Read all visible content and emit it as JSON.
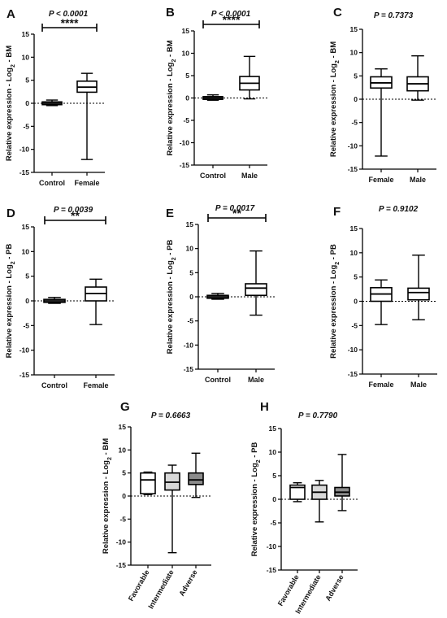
{
  "chart_data": [
    {
      "type": "boxplot",
      "panel_letter": "A",
      "p_value": "P < 0.0001",
      "ylabel": "Relative expression - Log2 - BM",
      "ylim": [
        -15,
        15
      ],
      "yticks": [
        15,
        10,
        5,
        0,
        -5,
        -10,
        -15
      ],
      "reference_line": 0,
      "significance": "****",
      "categories": [
        "Control",
        "Female"
      ],
      "fills": [
        "#ffffff",
        "#ffffff"
      ],
      "boxes": [
        {
          "min": -0.5,
          "q1": -0.3,
          "median": 0,
          "q3": 0.3,
          "max": 0.7
        },
        {
          "min": -12.2,
          "q1": 2.4,
          "median": 3.5,
          "q3": 4.8,
          "max": 6.5
        }
      ]
    },
    {
      "type": "boxplot",
      "panel_letter": "B",
      "p_value": "P < 0.0001",
      "ylabel": "Relative expression - Log2 - BM",
      "ylim": [
        -15,
        15
      ],
      "yticks": [
        15,
        10,
        5,
        0,
        -5,
        -10,
        -15
      ],
      "reference_line": 0,
      "significance": "****",
      "categories": [
        "Control",
        "Male"
      ],
      "fills": [
        "#ffffff",
        "#ffffff"
      ],
      "boxes": [
        {
          "min": -0.5,
          "q1": -0.3,
          "median": 0,
          "q3": 0.3,
          "max": 0.7
        },
        {
          "min": -0.2,
          "q1": 1.8,
          "median": 3.3,
          "q3": 4.8,
          "max": 9.3
        }
      ]
    },
    {
      "type": "boxplot",
      "panel_letter": "C",
      "p_value": "P = 0.7373",
      "ylabel": "Relative expression - Log2 - BM",
      "ylim": [
        -15,
        15
      ],
      "yticks": [
        15,
        10,
        5,
        0,
        -5,
        -10,
        -15
      ],
      "reference_line": 0,
      "significance": "",
      "categories": [
        "Female",
        "Male"
      ],
      "fills": [
        "#ffffff",
        "#ffffff"
      ],
      "boxes": [
        {
          "min": -12.2,
          "q1": 2.4,
          "median": 3.5,
          "q3": 4.8,
          "max": 6.5
        },
        {
          "min": -0.2,
          "q1": 1.8,
          "median": 3.3,
          "q3": 4.8,
          "max": 9.3
        }
      ]
    },
    {
      "type": "boxplot",
      "panel_letter": "D",
      "p_value": "P = 0.0039",
      "ylabel": "Relative expression - Log2 - PB",
      "ylim": [
        -15,
        15
      ],
      "yticks": [
        15,
        10,
        5,
        0,
        -5,
        -10,
        -15
      ],
      "reference_line": 0,
      "significance": "**",
      "categories": [
        "Control",
        "Female"
      ],
      "fills": [
        "#ffffff",
        "#ffffff"
      ],
      "boxes": [
        {
          "min": -0.5,
          "q1": -0.3,
          "median": 0,
          "q3": 0.3,
          "max": 0.7
        },
        {
          "min": -4.8,
          "q1": 0,
          "median": 1.5,
          "q3": 2.8,
          "max": 4.4
        }
      ]
    },
    {
      "type": "boxplot",
      "panel_letter": "E",
      "p_value": "P = 0.0017",
      "ylabel": "Relative expression - Log2 - PB",
      "ylim": [
        -15,
        15
      ],
      "yticks": [
        15,
        10,
        5,
        0,
        -5,
        -10,
        -15
      ],
      "reference_line": 0,
      "significance": "**",
      "categories": [
        "Control",
        "Male"
      ],
      "fills": [
        "#ffffff",
        "#ffffff"
      ],
      "boxes": [
        {
          "min": -0.5,
          "q1": -0.3,
          "median": 0,
          "q3": 0.3,
          "max": 0.7
        },
        {
          "min": -3.8,
          "q1": 0.3,
          "median": 1.8,
          "q3": 2.7,
          "max": 9.5
        }
      ]
    },
    {
      "type": "boxplot",
      "panel_letter": "F",
      "p_value": "P = 0.9102",
      "ylabel": "Relative expression - Log2 - PB",
      "ylim": [
        -15,
        15
      ],
      "yticks": [
        15,
        10,
        5,
        0,
        -5,
        -10,
        -15
      ],
      "reference_line": 0,
      "significance": "",
      "categories": [
        "Female",
        "Male"
      ],
      "fills": [
        "#ffffff",
        "#ffffff"
      ],
      "boxes": [
        {
          "min": -4.8,
          "q1": 0,
          "median": 1.5,
          "q3": 2.8,
          "max": 4.4
        },
        {
          "min": -3.8,
          "q1": 0.3,
          "median": 1.8,
          "q3": 2.7,
          "max": 9.5
        }
      ]
    },
    {
      "type": "boxplot",
      "panel_letter": "G",
      "p_value": "P = 0.6663",
      "ylabel": "Relative expression - Log2 - BM",
      "ylim": [
        -15,
        15
      ],
      "yticks": [
        15,
        10,
        5,
        0,
        -5,
        -10,
        -15
      ],
      "reference_line": 0,
      "significance": "",
      "categories": [
        "Favorable",
        "Intermediate",
        "Adverse"
      ],
      "rotate_labels": true,
      "fills": [
        "#ffffff",
        "#d9d9d9",
        "#8c8c8c"
      ],
      "boxes": [
        {
          "min": 0.3,
          "q1": 0.5,
          "median": 3.5,
          "q3": 5.0,
          "max": 5.2
        },
        {
          "min": -12.3,
          "q1": 1.3,
          "median": 3.0,
          "q3": 5.0,
          "max": 6.7
        },
        {
          "min": -0.3,
          "q1": 2.5,
          "median": 3.5,
          "q3": 5.0,
          "max": 9.3
        }
      ]
    },
    {
      "type": "boxplot",
      "panel_letter": "H",
      "p_value": "P = 0.7790",
      "ylabel": "Relative expression - Log2 - PB",
      "ylim": [
        -15,
        15
      ],
      "yticks": [
        15,
        10,
        5,
        0,
        -5,
        -10,
        -15
      ],
      "reference_line": 0,
      "significance": "",
      "categories": [
        "Favorable",
        "Intermediate",
        "Adverse"
      ],
      "rotate_labels": true,
      "fills": [
        "#ffffff",
        "#d9d9d9",
        "#8c8c8c"
      ],
      "boxes": [
        {
          "min": -0.5,
          "q1": 0,
          "median": 2.5,
          "q3": 3.0,
          "max": 3.5
        },
        {
          "min": -4.8,
          "q1": 0,
          "median": 1.5,
          "q3": 3.0,
          "max": 4.0
        },
        {
          "min": -2.4,
          "q1": 0.7,
          "median": 1.5,
          "q3": 2.5,
          "max": 9.5
        }
      ]
    }
  ]
}
